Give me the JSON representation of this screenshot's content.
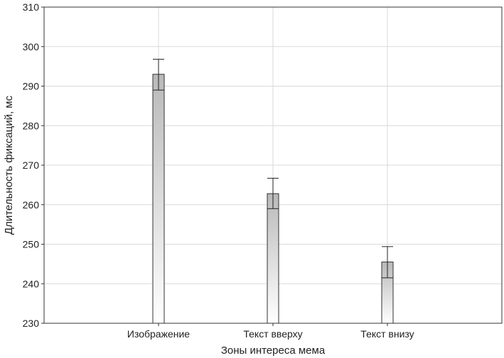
{
  "chart_data": {
    "type": "bar",
    "title": "",
    "xlabel": "Зоны интереса мема",
    "ylabel": "Длительность фиксаций, мс",
    "categories": [
      "Изображение",
      "Текст вверху",
      "Текст внизу"
    ],
    "values": [
      293,
      262.8,
      245.5
    ],
    "error_lower": [
      289,
      259,
      241.5
    ],
    "error_upper": [
      296.8,
      266.7,
      249.4
    ],
    "ylim": [
      230,
      310
    ],
    "yticks": [
      230,
      240,
      250,
      260,
      270,
      280,
      290,
      300,
      310
    ],
    "ytick_labels": [
      "230",
      "240",
      "250",
      "260",
      "270",
      "280",
      "290",
      "300",
      "310"
    ],
    "grid": true,
    "legend": "none",
    "colors": {
      "bar_top": "#b9b9b9",
      "bar_bottom": "#ffffff",
      "grid": "#d9d9d9",
      "axis": "#333333"
    }
  }
}
